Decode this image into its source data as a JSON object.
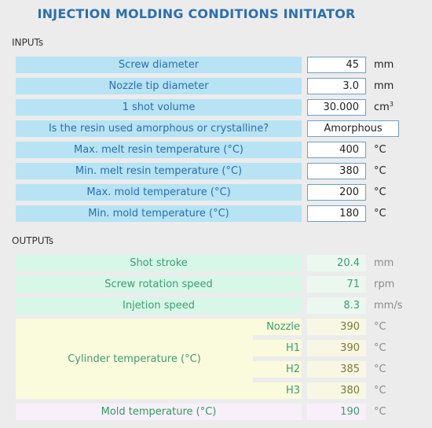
{
  "title": "INJECTION MOLDING CONDITIONS INITIATOR",
  "inputs_heading": "INPUTs",
  "outputs_heading": "OUTPUTs",
  "inputs": [
    {
      "label": "Screw diameter",
      "value": "45",
      "unit": "mm"
    },
    {
      "label": "Nozzle tip diameter",
      "value": "3.0",
      "unit": "mm"
    },
    {
      "label": "1 shot volume",
      "value": "30.000",
      "unit": "cm",
      "unit_sup": "3"
    },
    {
      "label": "Is the resin used amorphous or crystalline?",
      "value": "Amorphous",
      "unit": ""
    },
    {
      "label": "Max. melt resin temperature (°C)",
      "value": "400",
      "unit": "°C"
    },
    {
      "label": "Min. melt resin temperature (°C)",
      "value": "380",
      "unit": "°C"
    },
    {
      "label": "Max. mold temperature (°C)",
      "value": "200",
      "unit": "°C"
    },
    {
      "label": "Min. mold temperature (°C)",
      "value": "180",
      "unit": "°C"
    }
  ],
  "outputs": [
    {
      "label": "Shot stroke",
      "value": "20.4",
      "unit": "mm"
    },
    {
      "label": "Screw rotation speed",
      "value": "71",
      "unit": "rpm"
    },
    {
      "label": "Injetion speed",
      "value": "8.3",
      "unit": "mm/s"
    }
  ],
  "cylinder": {
    "label": "Cylinder temperature (°C)",
    "zones": [
      {
        "name": "Nozzle",
        "value": "390",
        "unit": "°C"
      },
      {
        "name": "H1",
        "value": "390",
        "unit": "°C"
      },
      {
        "name": "H2",
        "value": "385",
        "unit": "°C"
      },
      {
        "name": "H3",
        "value": "380",
        "unit": "°C"
      }
    ]
  },
  "mold": {
    "label": "Mold temperature (°C)",
    "value": "190",
    "unit": "°C"
  }
}
